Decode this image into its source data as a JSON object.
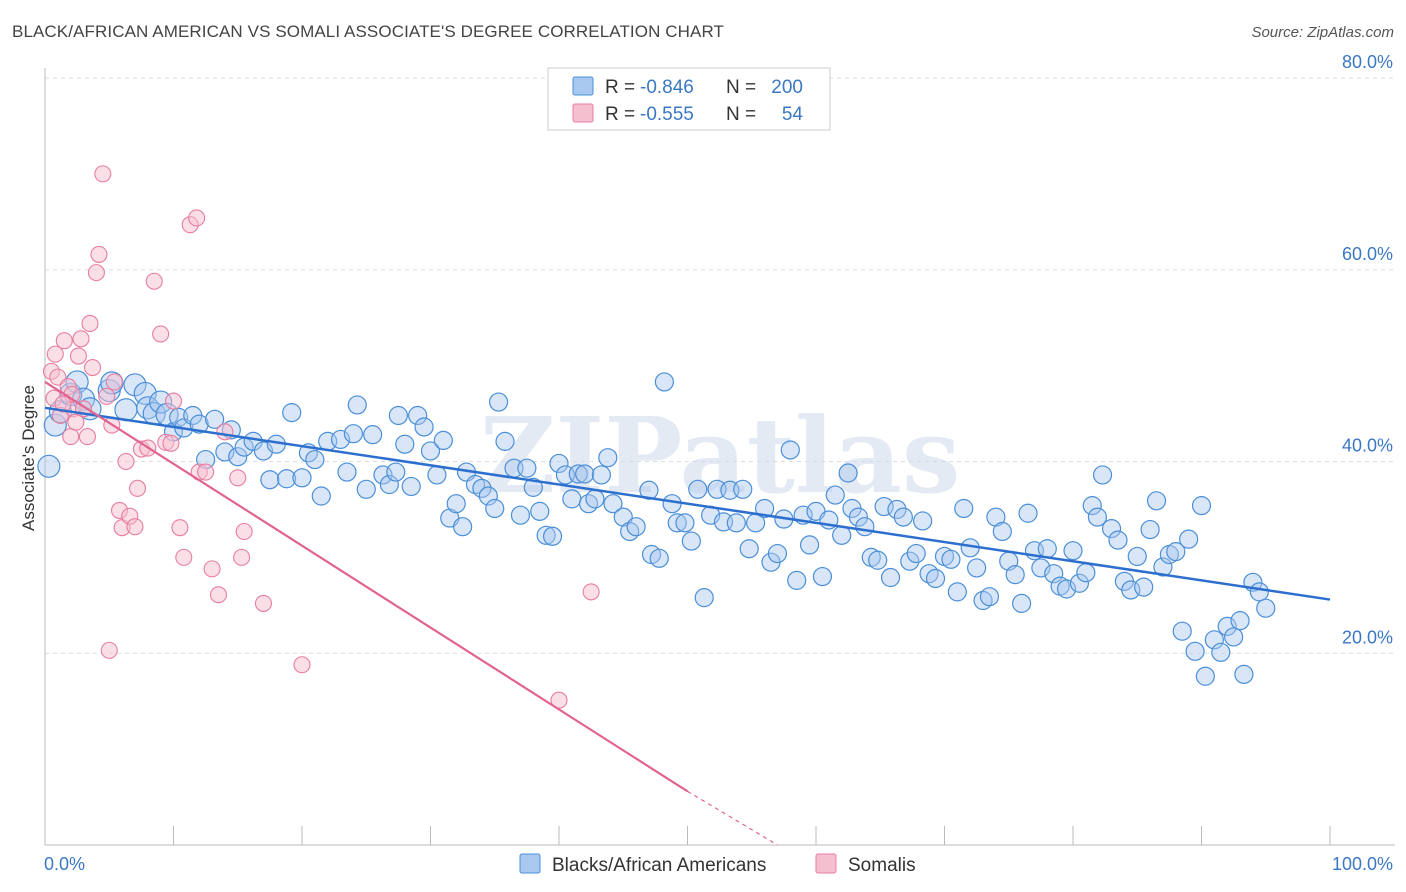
{
  "title": "BLACK/AFRICAN AMERICAN VS SOMALI ASSOCIATE'S DEGREE CORRELATION CHART",
  "source": "Source: ZipAtlas.com",
  "watermark": "ZIPatlas",
  "colors": {
    "blue": "#4a8fd8",
    "blue_fill": "#a9c8ef",
    "blue_line": "#2d6fcf",
    "pink": "#e87da0",
    "pink_fill": "#f6bfd0",
    "pink_line": "#e0648e",
    "tick_text": "#3b78c4",
    "grid": "#dddddd"
  },
  "legend": {
    "rows": [
      {
        "r_label": "R = ",
        "r_value": "-0.846",
        "n_label": "N = ",
        "n_value": "200"
      },
      {
        "r_label": "R = ",
        "r_value": "-0.555",
        "n_label": "N = ",
        "n_value": "54"
      }
    ]
  },
  "bottom_legend": [
    "Blacks/African Americans",
    "Somalis"
  ],
  "chart_data": {
    "type": "scatter",
    "ylabel": "Associate's Degree",
    "xlim": [
      0,
      100
    ],
    "ylim": [
      0,
      80
    ],
    "x_tick_labels": [
      "0.0%",
      "100.0%"
    ],
    "y_ticks": [
      20,
      40,
      60,
      80
    ],
    "y_tick_labels": [
      "20.0%",
      "40.0%",
      "60.0%",
      "80.0%"
    ],
    "grid": true,
    "series": [
      {
        "name": "Blacks/African Americans",
        "trend": {
          "x0": 0,
          "y0": 45.6,
          "x1": 100,
          "y1": 25.6
        },
        "points": [
          [
            0.3,
            39.5
          ],
          [
            0.8,
            43.8
          ],
          [
            1.2,
            45.2
          ],
          [
            2.0,
            47.0
          ],
          [
            2.5,
            48.3
          ],
          [
            3.0,
            46.5
          ],
          [
            3.5,
            45.5
          ],
          [
            5.0,
            47.4
          ],
          [
            5.2,
            48.2
          ],
          [
            6.3,
            45.4
          ],
          [
            7.0,
            48.0
          ],
          [
            7.8,
            47.1
          ],
          [
            8.0,
            45.6
          ],
          [
            8.5,
            45.0
          ],
          [
            9.0,
            46.2
          ],
          [
            9.5,
            44.9
          ],
          [
            10.0,
            43.1
          ],
          [
            10.4,
            44.6
          ],
          [
            10.8,
            43.5
          ],
          [
            11.5,
            44.8
          ],
          [
            12.0,
            43.9
          ],
          [
            12.5,
            40.2
          ],
          [
            13.2,
            44.4
          ],
          [
            14.0,
            41.0
          ],
          [
            14.5,
            43.3
          ],
          [
            15.0,
            40.5
          ],
          [
            15.5,
            41.5
          ],
          [
            16.2,
            42.1
          ],
          [
            17.0,
            41.1
          ],
          [
            17.5,
            38.1
          ],
          [
            18.0,
            41.8
          ],
          [
            18.8,
            38.2
          ],
          [
            19.2,
            45.1
          ],
          [
            20.0,
            38.3
          ],
          [
            20.5,
            40.9
          ],
          [
            21.0,
            40.2
          ],
          [
            21.5,
            36.4
          ],
          [
            22.0,
            42.1
          ],
          [
            23.0,
            42.3
          ],
          [
            23.5,
            38.9
          ],
          [
            24.0,
            42.9
          ],
          [
            24.3,
            45.9
          ],
          [
            25.0,
            37.1
          ],
          [
            25.5,
            42.8
          ],
          [
            26.3,
            38.6
          ],
          [
            26.8,
            37.6
          ],
          [
            27.3,
            38.9
          ],
          [
            27.5,
            44.8
          ],
          [
            28.0,
            41.8
          ],
          [
            28.5,
            37.4
          ],
          [
            29.0,
            44.8
          ],
          [
            29.5,
            43.6
          ],
          [
            30.0,
            41.1
          ],
          [
            30.5,
            38.6
          ],
          [
            31.0,
            42.2
          ],
          [
            31.5,
            34.1
          ],
          [
            32.0,
            35.6
          ],
          [
            32.5,
            33.2
          ],
          [
            32.8,
            38.9
          ],
          [
            33.5,
            37.6
          ],
          [
            34.0,
            37.2
          ],
          [
            34.5,
            36.4
          ],
          [
            35.0,
            35.1
          ],
          [
            35.3,
            46.2
          ],
          [
            35.8,
            42.1
          ],
          [
            36.5,
            39.3
          ],
          [
            37.0,
            34.4
          ],
          [
            37.5,
            39.3
          ],
          [
            38.0,
            37.3
          ],
          [
            38.5,
            34.8
          ],
          [
            39.0,
            32.3
          ],
          [
            39.5,
            32.2
          ],
          [
            40.0,
            39.8
          ],
          [
            40.5,
            38.6
          ],
          [
            41.0,
            36.1
          ],
          [
            41.5,
            38.7
          ],
          [
            42.0,
            38.7
          ],
          [
            42.3,
            35.6
          ],
          [
            42.8,
            36.1
          ],
          [
            43.3,
            38.6
          ],
          [
            43.8,
            40.4
          ],
          [
            44.2,
            35.6
          ],
          [
            45.0,
            34.2
          ],
          [
            45.5,
            32.7
          ],
          [
            46.0,
            33.2
          ],
          [
            47.0,
            37.0
          ],
          [
            47.2,
            30.3
          ],
          [
            47.8,
            29.9
          ],
          [
            48.2,
            48.3
          ],
          [
            48.8,
            35.6
          ],
          [
            49.2,
            33.6
          ],
          [
            49.8,
            33.6
          ],
          [
            50.3,
            31.7
          ],
          [
            50.8,
            37.1
          ],
          [
            51.3,
            25.8
          ],
          [
            51.8,
            34.4
          ],
          [
            52.3,
            37.1
          ],
          [
            52.8,
            33.7
          ],
          [
            53.3,
            37.0
          ],
          [
            53.8,
            33.6
          ],
          [
            54.3,
            37.1
          ],
          [
            54.8,
            30.9
          ],
          [
            55.3,
            33.6
          ],
          [
            56.0,
            35.1
          ],
          [
            56.5,
            29.5
          ],
          [
            57.0,
            30.4
          ],
          [
            57.5,
            34.0
          ],
          [
            58.0,
            41.2
          ],
          [
            58.5,
            27.6
          ],
          [
            59.0,
            34.4
          ],
          [
            59.5,
            31.3
          ],
          [
            60.0,
            34.8
          ],
          [
            60.5,
            28.0
          ],
          [
            61.0,
            33.9
          ],
          [
            61.5,
            36.5
          ],
          [
            62.0,
            32.3
          ],
          [
            62.5,
            38.8
          ],
          [
            62.8,
            35.1
          ],
          [
            63.3,
            34.2
          ],
          [
            63.8,
            33.2
          ],
          [
            64.3,
            30.0
          ],
          [
            64.8,
            29.7
          ],
          [
            65.3,
            35.3
          ],
          [
            65.8,
            27.9
          ],
          [
            66.3,
            35.0
          ],
          [
            66.8,
            34.2
          ],
          [
            67.3,
            29.6
          ],
          [
            67.8,
            30.4
          ],
          [
            68.3,
            33.8
          ],
          [
            68.8,
            28.3
          ],
          [
            69.3,
            27.8
          ],
          [
            70.0,
            30.1
          ],
          [
            70.5,
            29.8
          ],
          [
            71.0,
            26.4
          ],
          [
            71.5,
            35.1
          ],
          [
            72.0,
            31.0
          ],
          [
            72.5,
            28.9
          ],
          [
            73.0,
            25.5
          ],
          [
            73.5,
            25.9
          ],
          [
            74.0,
            34.2
          ],
          [
            74.5,
            32.7
          ],
          [
            75.0,
            29.6
          ],
          [
            75.5,
            28.2
          ],
          [
            76.0,
            25.2
          ],
          [
            76.5,
            34.6
          ],
          [
            77.0,
            30.7
          ],
          [
            77.5,
            28.9
          ],
          [
            78.0,
            30.9
          ],
          [
            78.5,
            28.3
          ],
          [
            79.0,
            27.0
          ],
          [
            79.5,
            26.7
          ],
          [
            80.0,
            30.7
          ],
          [
            80.5,
            27.3
          ],
          [
            81.0,
            28.4
          ],
          [
            81.5,
            35.4
          ],
          [
            81.9,
            34.2
          ],
          [
            82.3,
            38.6
          ],
          [
            83.0,
            33.0
          ],
          [
            83.5,
            31.8
          ],
          [
            84.0,
            27.5
          ],
          [
            84.5,
            26.6
          ],
          [
            85.0,
            30.1
          ],
          [
            85.5,
            26.9
          ],
          [
            86.0,
            32.9
          ],
          [
            86.5,
            35.9
          ],
          [
            87.0,
            29.0
          ],
          [
            87.5,
            30.3
          ],
          [
            88.0,
            30.6
          ],
          [
            88.5,
            22.3
          ],
          [
            89.0,
            31.9
          ],
          [
            89.5,
            20.2
          ],
          [
            90.0,
            35.4
          ],
          [
            90.3,
            17.6
          ],
          [
            91.0,
            21.4
          ],
          [
            91.5,
            20.1
          ],
          [
            92.0,
            22.8
          ],
          [
            92.5,
            21.7
          ],
          [
            93.0,
            23.4
          ],
          [
            93.3,
            17.8
          ],
          [
            94.0,
            27.4
          ],
          [
            94.5,
            26.4
          ],
          [
            95.0,
            24.7
          ]
        ]
      },
      {
        "name": "Somalis",
        "trend": {
          "x0": 0,
          "y0": 48.3,
          "x1": 50,
          "y1": 5.6,
          "dash_x1": 57,
          "dash_y1": 0
        },
        "points": [
          [
            0.5,
            49.4
          ],
          [
            0.7,
            46.6
          ],
          [
            0.8,
            51.2
          ],
          [
            1.0,
            48.8
          ],
          [
            1.2,
            44.8
          ],
          [
            1.5,
            52.6
          ],
          [
            1.8,
            47.8
          ],
          [
            2.0,
            42.6
          ],
          [
            2.2,
            45.5
          ],
          [
            2.4,
            44.1
          ],
          [
            2.6,
            51.0
          ],
          [
            2.8,
            52.8
          ],
          [
            3.0,
            45.5
          ],
          [
            3.3,
            42.6
          ],
          [
            3.5,
            54.4
          ],
          [
            3.7,
            49.8
          ],
          [
            4.0,
            59.7
          ],
          [
            4.2,
            61.6
          ],
          [
            4.5,
            70.0
          ],
          [
            4.8,
            46.8
          ],
          [
            5.0,
            20.3
          ],
          [
            5.2,
            43.8
          ],
          [
            5.4,
            48.3
          ],
          [
            5.8,
            34.9
          ],
          [
            6.0,
            33.1
          ],
          [
            6.3,
            40.0
          ],
          [
            6.6,
            34.3
          ],
          [
            7.0,
            33.2
          ],
          [
            7.2,
            37.2
          ],
          [
            7.5,
            41.3
          ],
          [
            8.0,
            41.4
          ],
          [
            8.5,
            58.8
          ],
          [
            9.0,
            53.3
          ],
          [
            9.4,
            42.0
          ],
          [
            9.8,
            41.9
          ],
          [
            10.0,
            46.3
          ],
          [
            10.5,
            33.1
          ],
          [
            10.8,
            30.0
          ],
          [
            11.3,
            64.7
          ],
          [
            11.8,
            65.4
          ],
          [
            12.0,
            38.9
          ],
          [
            12.5,
            38.9
          ],
          [
            13.0,
            28.8
          ],
          [
            13.5,
            26.1
          ],
          [
            14.0,
            43.1
          ],
          [
            15.0,
            38.3
          ],
          [
            15.3,
            30.0
          ],
          [
            15.5,
            32.7
          ],
          [
            17.0,
            25.2
          ],
          [
            20.0,
            18.8
          ],
          [
            40.0,
            15.1
          ],
          [
            42.5,
            26.4
          ],
          [
            2.1,
            47.0
          ],
          [
            1.4,
            46.0
          ]
        ]
      }
    ]
  }
}
